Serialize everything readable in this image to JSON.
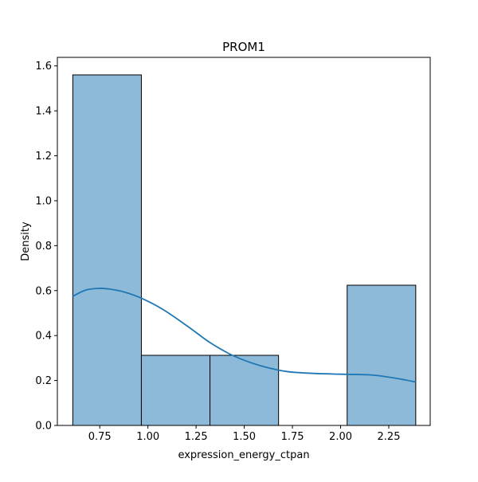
{
  "chart_data": {
    "type": "bar",
    "title": "PROM1",
    "xlabel": "expression_energy_ctpan",
    "ylabel": "Density",
    "xlim": [
      0.53,
      2.465
    ],
    "ylim": [
      0,
      1.638
    ],
    "x_ticks": [
      0.75,
      1.0,
      1.25,
      1.5,
      1.75,
      2.0,
      2.25
    ],
    "x_tick_labels": [
      "0.75",
      "1.00",
      "1.25",
      "1.50",
      "1.75",
      "2.00",
      "2.25"
    ],
    "y_ticks": [
      0.0,
      0.2,
      0.4,
      0.6,
      0.8,
      1.0,
      1.2,
      1.4,
      1.6
    ],
    "y_tick_labels": [
      "0.0",
      "0.2",
      "0.4",
      "0.6",
      "0.8",
      "1.0",
      "1.2",
      "1.4",
      "1.6"
    ],
    "grid": false,
    "legend": false,
    "bar_color": "#8ebad9",
    "edge_color": "#000000",
    "line_color": "#1f77b4",
    "bins": [
      {
        "x0": 0.61,
        "x1": 0.966,
        "density": 1.56
      },
      {
        "x0": 0.966,
        "x1": 1.322,
        "density": 0.312
      },
      {
        "x0": 1.322,
        "x1": 1.678,
        "density": 0.312
      },
      {
        "x0": 1.678,
        "x1": 2.034,
        "density": 0
      },
      {
        "x0": 2.034,
        "x1": 2.39,
        "density": 0.624
      }
    ],
    "kde": {
      "x": [
        0.61,
        0.68,
        0.75,
        0.8,
        0.88,
        0.97,
        1.08,
        1.2,
        1.32,
        1.42,
        1.5,
        1.6,
        1.72,
        1.85,
        2.0,
        2.15,
        2.25,
        2.32,
        2.39
      ],
      "y": [
        0.575,
        0.603,
        0.61,
        0.607,
        0.593,
        0.565,
        0.515,
        0.445,
        0.37,
        0.32,
        0.29,
        0.262,
        0.24,
        0.232,
        0.228,
        0.225,
        0.215,
        0.205,
        0.193
      ]
    }
  }
}
